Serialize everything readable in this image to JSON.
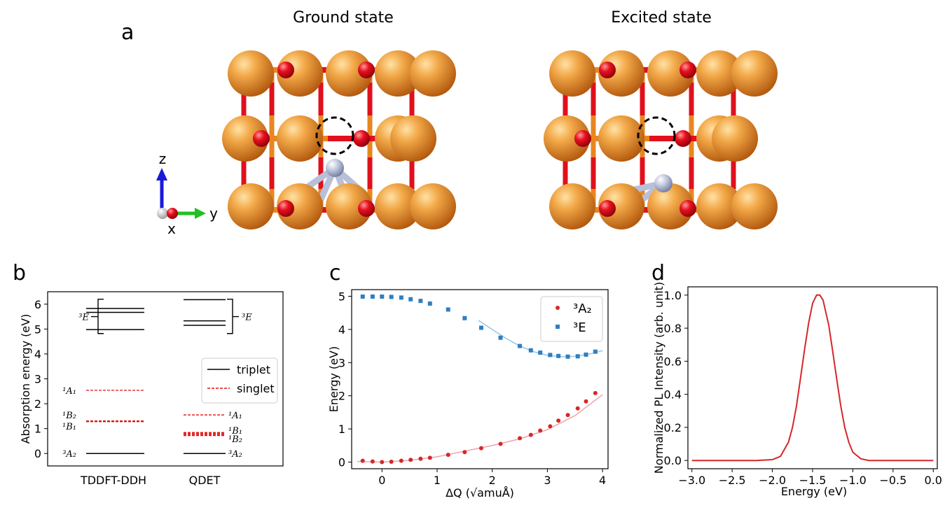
{
  "panel_a": {
    "label": "a",
    "left_title": "Ground state",
    "right_title": "Excited state",
    "axes": {
      "z": "z",
      "y": "y",
      "x": "x"
    },
    "colors": {
      "metal": "#e8861f",
      "oxygen": "#e0101c",
      "nitrogen": "#b8c0d8"
    }
  },
  "panel_b": {
    "label": "b"
  },
  "panel_c": {
    "label": "c"
  },
  "panel_d": {
    "label": "d"
  },
  "chart_data": [
    {
      "panel": "b",
      "type": "line",
      "ylabel": "Absorption energy (eV)",
      "ylim": [
        -0.5,
        6.5
      ],
      "yticks": [
        "0",
        "1",
        "2",
        "3",
        "4",
        "5",
        "6"
      ],
      "categories": [
        "TDDFT-DDH",
        "QDET"
      ],
      "legend": [
        {
          "name": "triplet",
          "color": "#000000",
          "style": "solid"
        },
        {
          "name": "singlet",
          "color": "#dd1111",
          "style": "dashed"
        }
      ],
      "legend_position": "right",
      "groups": [
        {
          "method": "TDDFT-DDH",
          "triplet": [
            0.0,
            4.98,
            5.67,
            5.83
          ],
          "singlet": [
            1.28,
            1.31,
            2.54
          ],
          "labels": [
            {
              "text": "³A₂",
              "y": 0.0
            },
            {
              "text": "¹B₁",
              "y": 1.1
            },
            {
              "text": "¹B₂",
              "y": 1.55
            },
            {
              "text": "¹A₁",
              "y": 2.54
            },
            {
              "text": "³E",
              "y": 5.5
            }
          ]
        },
        {
          "method": "QDET",
          "triplet": [
            0.0,
            5.15,
            5.33,
            6.18
          ],
          "singlet": [
            0.72,
            0.76,
            0.8,
            0.84,
            1.55
          ],
          "labels": [
            {
              "text": "³A₂",
              "y": 0.0
            },
            {
              "text": "¹B₂",
              "y": 0.6
            },
            {
              "text": "¹B₁",
              "y": 0.93
            },
            {
              "text": "¹A₁",
              "y": 1.55
            },
            {
              "text": "³E",
              "y": 5.5
            }
          ]
        }
      ]
    },
    {
      "panel": "c",
      "type": "scatter",
      "xlabel": "ΔQ (√amuÅ)",
      "ylabel": "Energy (eV)",
      "xlim": [
        -0.55,
        4.1
      ],
      "ylim": [
        -0.2,
        5.2
      ],
      "xticks": [
        "0",
        "1",
        "2",
        "3",
        "4"
      ],
      "yticks": [
        "0",
        "1",
        "2",
        "3",
        "4",
        "5"
      ],
      "legend_position": "top-right",
      "series": [
        {
          "name": "³A₂",
          "marker": "circle",
          "color": "#d62728",
          "x": [
            -0.35,
            -0.17,
            0.0,
            0.17,
            0.35,
            0.52,
            0.7,
            0.87,
            1.2,
            1.5,
            1.8,
            2.15,
            2.5,
            2.7,
            2.87,
            3.05,
            3.2,
            3.37,
            3.55,
            3.7,
            3.87
          ],
          "y": [
            0.04,
            0.02,
            0.0,
            0.01,
            0.04,
            0.07,
            0.1,
            0.13,
            0.22,
            0.3,
            0.42,
            0.55,
            0.72,
            0.82,
            0.95,
            1.08,
            1.25,
            1.42,
            1.62,
            1.83,
            2.08
          ]
        },
        {
          "name": "³E",
          "marker": "square",
          "color": "#2f7fc1",
          "x": [
            -0.35,
            -0.17,
            0.0,
            0.17,
            0.35,
            0.52,
            0.7,
            0.87,
            1.2,
            1.5,
            1.8,
            2.15,
            2.5,
            2.7,
            2.87,
            3.05,
            3.2,
            3.37,
            3.55,
            3.7,
            3.87
          ],
          "y": [
            4.99,
            4.99,
            4.99,
            4.98,
            4.96,
            4.91,
            4.86,
            4.78,
            4.6,
            4.34,
            4.05,
            3.75,
            3.5,
            3.37,
            3.3,
            3.23,
            3.2,
            3.18,
            3.19,
            3.24,
            3.33
          ]
        }
      ],
      "fits": [
        {
          "color": "#f0a7ad",
          "x": [
            -0.45,
            0.0,
            0.5,
            1.0,
            1.5,
            2.0,
            2.5,
            3.0,
            3.5,
            4.0
          ],
          "y": [
            0.02,
            0.0,
            0.05,
            0.16,
            0.33,
            0.5,
            0.7,
            0.98,
            1.4,
            2.03
          ]
        },
        {
          "color": "#9fc8e6",
          "x": [
            1.75,
            2.0,
            2.25,
            2.5,
            2.75,
            3.0,
            3.25,
            3.5,
            3.75,
            4.0
          ],
          "y": [
            4.27,
            4.0,
            3.73,
            3.5,
            3.33,
            3.22,
            3.18,
            3.19,
            3.25,
            3.36
          ]
        }
      ]
    },
    {
      "panel": "d",
      "type": "line",
      "xlabel": "Energy (eV)",
      "ylabel": "Normalized PL Intensity (arb. unit)",
      "xlim": [
        -3.05,
        0.05
      ],
      "ylim": [
        -0.05,
        1.05
      ],
      "xticks": [
        "−3.0",
        "−2.5",
        "−2.0",
        "−1.5",
        "−1.0",
        "−0.5",
        "0.0"
      ],
      "yticks": [
        "0.0",
        "0.2",
        "0.4",
        "0.6",
        "0.8",
        "1.0"
      ],
      "series": [
        {
          "color": "#d62728",
          "x": [
            -3.0,
            -2.2,
            -2.0,
            -1.9,
            -1.8,
            -1.75,
            -1.7,
            -1.65,
            -1.6,
            -1.55,
            -1.5,
            -1.45,
            -1.41,
            -1.37,
            -1.3,
            -1.25,
            -1.2,
            -1.15,
            -1.1,
            -1.05,
            -1.0,
            -0.9,
            -0.8,
            -0.5,
            0.0
          ],
          "y": [
            0.0,
            0.0,
            0.005,
            0.025,
            0.11,
            0.2,
            0.33,
            0.5,
            0.67,
            0.83,
            0.95,
            1.0,
            1.0,
            0.97,
            0.82,
            0.66,
            0.49,
            0.33,
            0.2,
            0.11,
            0.05,
            0.01,
            0.0,
            0.0,
            0.0
          ]
        }
      ]
    }
  ]
}
